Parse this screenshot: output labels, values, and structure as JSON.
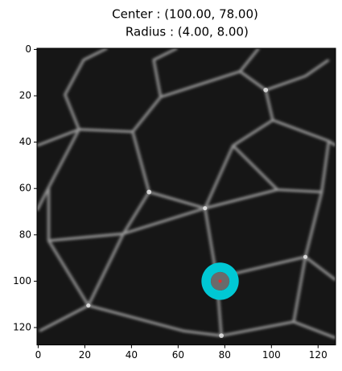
{
  "chart_data": {
    "type": "image",
    "title": "Center : (100.00, 78.00)",
    "subtitle": " Radius : (4.00, 8.00)",
    "xlim": [
      -0.5,
      127.5
    ],
    "ylim": [
      127.5,
      -0.5
    ],
    "xticks": [
      0,
      20,
      40,
      60,
      80,
      100,
      120
    ],
    "yticks": [
      0,
      20,
      40,
      60,
      80,
      100,
      120
    ],
    "marker": {
      "x": 78,
      "y": 100,
      "inner_radius": 4,
      "outer_radius": 8,
      "color": "#00c8d4"
    }
  }
}
